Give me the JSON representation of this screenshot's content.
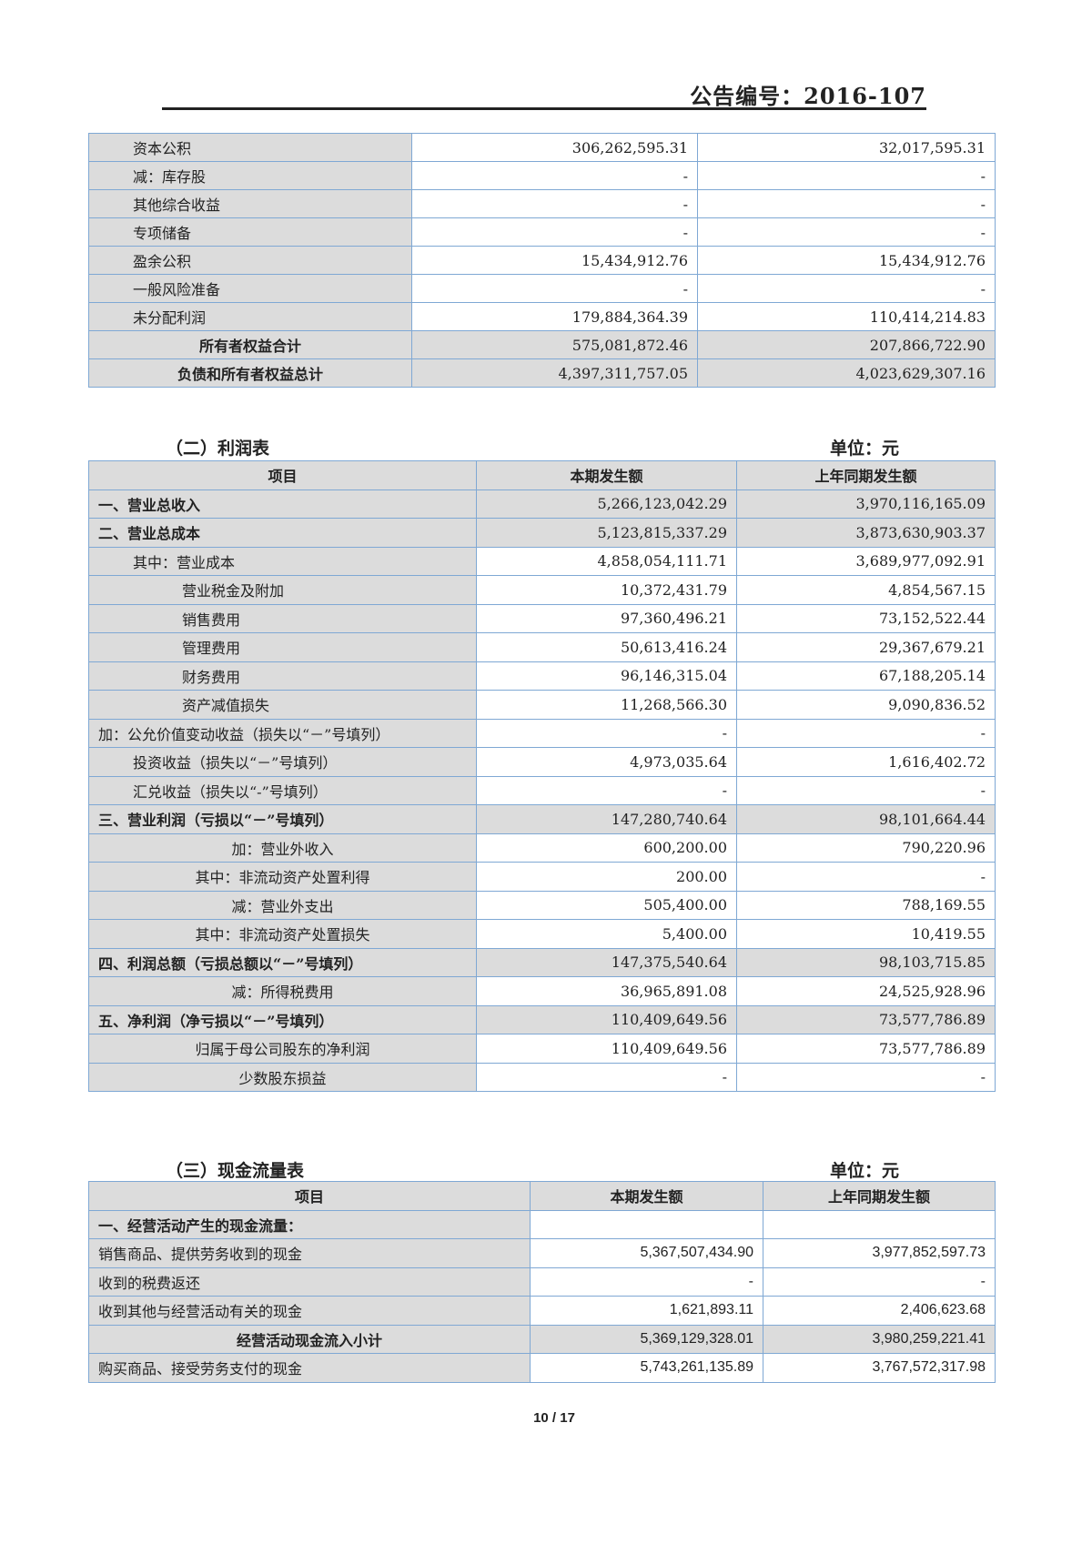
{
  "header": {
    "doc_number": "公告编号：2016-107"
  },
  "balance_sheet_cont": {
    "rows": [
      {
        "label": "资本公积",
        "current": "306,262,595.31",
        "previous": "32,017,595.31",
        "level": 1
      },
      {
        "label": "减：库存股",
        "current": "-",
        "previous": "-",
        "level": 1
      },
      {
        "label": "其他综合收益",
        "current": "-",
        "previous": "-",
        "level": 1
      },
      {
        "label": "专项储备",
        "current": "-",
        "previous": "-",
        "level": 1
      },
      {
        "label": "盈余公积",
        "current": "15,434,912.76",
        "previous": "15,434,912.76",
        "level": 1
      },
      {
        "label": "一般风险准备",
        "current": "-",
        "previous": "-",
        "level": 1
      },
      {
        "label": "未分配利润",
        "current": "179,884,364.39",
        "previous": "110,414,214.83",
        "level": 1
      },
      {
        "label": "所有者权益合计",
        "current": "575,081,872.46",
        "previous": "207,866,722.90",
        "level": "c",
        "emphasis": true
      },
      {
        "label": "负债和所有者权益总计",
        "current": "4,397,311,757.05",
        "previous": "4,023,629,307.16",
        "level": "c",
        "emphasis": true
      }
    ]
  },
  "income_statement": {
    "title": "（二）利润表",
    "unit": "单位：元",
    "columns": [
      "项目",
      "本期发生额",
      "上年同期发生额"
    ],
    "rows": [
      {
        "label": "一、营业总收入",
        "current": "5,266,123,042.29",
        "previous": "3,970,116,165.09",
        "level": 0,
        "emphasis": true
      },
      {
        "label": "二、营业总成本",
        "current": "5,123,815,337.29",
        "previous": "3,873,630,903.37",
        "level": 0,
        "emphasis": true
      },
      {
        "label": "其中：营业成本",
        "current": "4,858,054,111.71",
        "previous": "3,689,977,092.91",
        "level": 1
      },
      {
        "label": "营业税金及附加",
        "current": "10,372,431.79",
        "previous": "4,854,567.15",
        "level": 2
      },
      {
        "label": "销售费用",
        "current": "97,360,496.21",
        "previous": "73,152,522.44",
        "level": 2
      },
      {
        "label": "管理费用",
        "current": "50,613,416.24",
        "previous": "29,367,679.21",
        "level": 2
      },
      {
        "label": "财务费用",
        "current": "96,146,315.04",
        "previous": "67,188,205.14",
        "level": 2
      },
      {
        "label": "资产减值损失",
        "current": "11,268,566.30",
        "previous": "9,090,836.52",
        "level": 2
      },
      {
        "label": "加：公允价值变动收益（损失以“－”号填列）",
        "current": "-",
        "previous": "-",
        "level": 0
      },
      {
        "label": "投资收益（损失以“－”号填列）",
        "current": "4,973,035.64",
        "previous": "1,616,402.72",
        "level": 1
      },
      {
        "label": "汇兑收益（损失以“-”号填列）",
        "current": "-",
        "previous": "-",
        "level": 1
      },
      {
        "label": "三、营业利润（亏损以“－”号填列）",
        "current": "147,280,740.64",
        "previous": "98,101,664.44",
        "level": 0,
        "emphasis": true
      },
      {
        "label": "加：营业外收入",
        "current": "600,200.00",
        "previous": "790,220.96",
        "level": "c"
      },
      {
        "label": "其中：非流动资产处置利得",
        "current": "200.00",
        "previous": "-",
        "level": "c"
      },
      {
        "label": "减：营业外支出",
        "current": "505,400.00",
        "previous": "788,169.55",
        "level": "c"
      },
      {
        "label": "其中：非流动资产处置损失",
        "current": "5,400.00",
        "previous": "10,419.55",
        "level": "c"
      },
      {
        "label": "四、利润总额（亏损总额以“－”号填列）",
        "current": "147,375,540.64",
        "previous": "98,103,715.85",
        "level": 0,
        "emphasis": true
      },
      {
        "label": "减：所得税费用",
        "current": "36,965,891.08",
        "previous": "24,525,928.96",
        "level": "c"
      },
      {
        "label": "五、净利润（净亏损以“－”号填列）",
        "current": "110,409,649.56",
        "previous": "73,577,786.89",
        "level": 0,
        "emphasis": true
      },
      {
        "label": "归属于母公司股东的净利润",
        "current": "110,409,649.56",
        "previous": "73,577,786.89",
        "level": "c"
      },
      {
        "label": "少数股东损益",
        "current": "-",
        "previous": "-",
        "level": "c"
      }
    ]
  },
  "cash_flow_statement": {
    "title": "（三）现金流量表",
    "unit": "单位：元",
    "columns": [
      "项目",
      "本期发生额",
      "上年同期发生额"
    ],
    "rows": [
      {
        "label": "一、经营活动产生的现金流量：",
        "current": "",
        "previous": "",
        "level": 0,
        "heading": true
      },
      {
        "label": "销售商品、提供劳务收到的现金",
        "current": "5,367,507,434.90",
        "previous": "3,977,852,597.73",
        "level": 0
      },
      {
        "label": "收到的税费返还",
        "current": "-",
        "previous": "-",
        "level": 0
      },
      {
        "label": "收到其他与经营活动有关的现金",
        "current": "1,621,893.11",
        "previous": "2,406,623.68",
        "level": 0
      },
      {
        "label": "经营活动现金流入小计",
        "current": "5,369,129,328.01",
        "previous": "3,980,259,221.41",
        "level": "c",
        "emphasis": true
      },
      {
        "label": "购买商品、接受劳务支付的现金",
        "current": "5,743,261,135.89",
        "previous": "3,767,572,317.98",
        "level": 0
      }
    ]
  },
  "footer": {
    "page": "10 / 17"
  },
  "colors": {
    "cell_gray": "#dcdcdc",
    "border_blue": "#7fa8d4"
  }
}
